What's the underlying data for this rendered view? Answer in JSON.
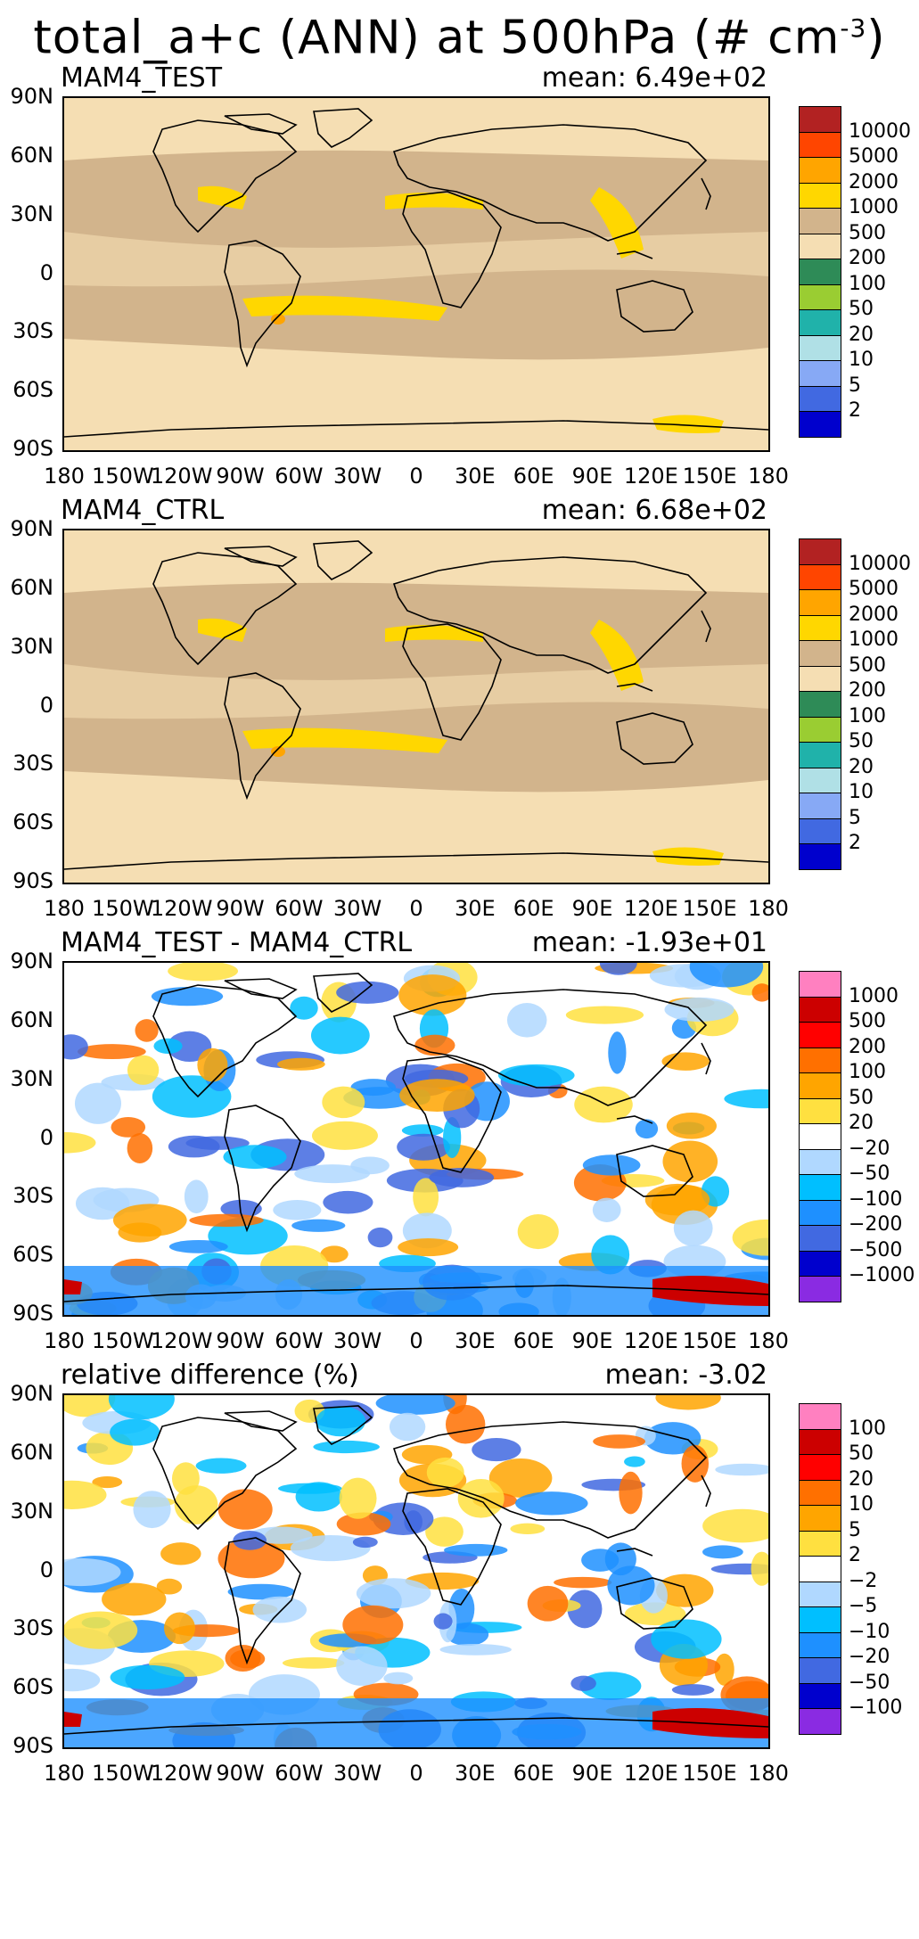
{
  "figure": {
    "title_text": "total_a+c (ANN) at 500hPa (# cm",
    "title_exp": "-3",
    "title_close": ")"
  },
  "axes": {
    "lat_labels": [
      "90N",
      "60N",
      "30N",
      "0",
      "30S",
      "60S",
      "90S"
    ],
    "lon_labels": [
      "180",
      "150W",
      "120W",
      "90W",
      "60W",
      "30W",
      "0",
      "30E",
      "60E",
      "90E",
      "120E",
      "150E",
      "180"
    ]
  },
  "panels": [
    {
      "name": "MAM4_TEST",
      "mean": "mean: 6.49e+02",
      "levels": [
        "10000",
        "5000",
        "2000",
        "1000",
        "500",
        "200",
        "100",
        "50",
        "20",
        "10",
        "5",
        "2"
      ],
      "colors": [
        "#b22222",
        "#ff4500",
        "#ffa500",
        "#ffd700",
        "#d2b48c",
        "#f5deb3",
        "#2e8b57",
        "#9acd32",
        "#20b2aa",
        "#b0e0e6",
        "#87a9f5",
        "#4169e1",
        "#0000cd"
      ]
    },
    {
      "name": "MAM4_CTRL",
      "mean": "mean: 6.68e+02",
      "levels": [
        "10000",
        "5000",
        "2000",
        "1000",
        "500",
        "200",
        "100",
        "50",
        "20",
        "10",
        "5",
        "2"
      ],
      "colors": [
        "#b22222",
        "#ff4500",
        "#ffa500",
        "#ffd700",
        "#d2b48c",
        "#f5deb3",
        "#2e8b57",
        "#9acd32",
        "#20b2aa",
        "#b0e0e6",
        "#87a9f5",
        "#4169e1",
        "#0000cd"
      ]
    },
    {
      "name": "MAM4_TEST - MAM4_CTRL",
      "mean": "mean: -1.93e+01",
      "levels": [
        "1000",
        "500",
        "200",
        "100",
        "50",
        "20",
        "-20",
        "-50",
        "-100",
        "-200",
        "-500",
        "-1000"
      ],
      "colors": [
        "#ff80c0",
        "#cc0000",
        "#ff0000",
        "#ff7000",
        "#ffa500",
        "#ffe040",
        "#ffffff",
        "#b0d8ff",
        "#00bfff",
        "#1e90ff",
        "#4169e1",
        "#0000cd",
        "#8a2be2"
      ]
    },
    {
      "name": "relative difference (%)",
      "mean": "mean: -3.02",
      "levels": [
        "100",
        "50",
        "20",
        "10",
        "5",
        "2",
        "-2",
        "-5",
        "-10",
        "-20",
        "-50",
        "-100"
      ],
      "colors": [
        "#ff80c0",
        "#cc0000",
        "#ff0000",
        "#ff7000",
        "#ffa500",
        "#ffe040",
        "#ffffff",
        "#b0d8ff",
        "#00bfff",
        "#1e90ff",
        "#4169e1",
        "#0000cd",
        "#8a2be2"
      ]
    }
  ]
}
